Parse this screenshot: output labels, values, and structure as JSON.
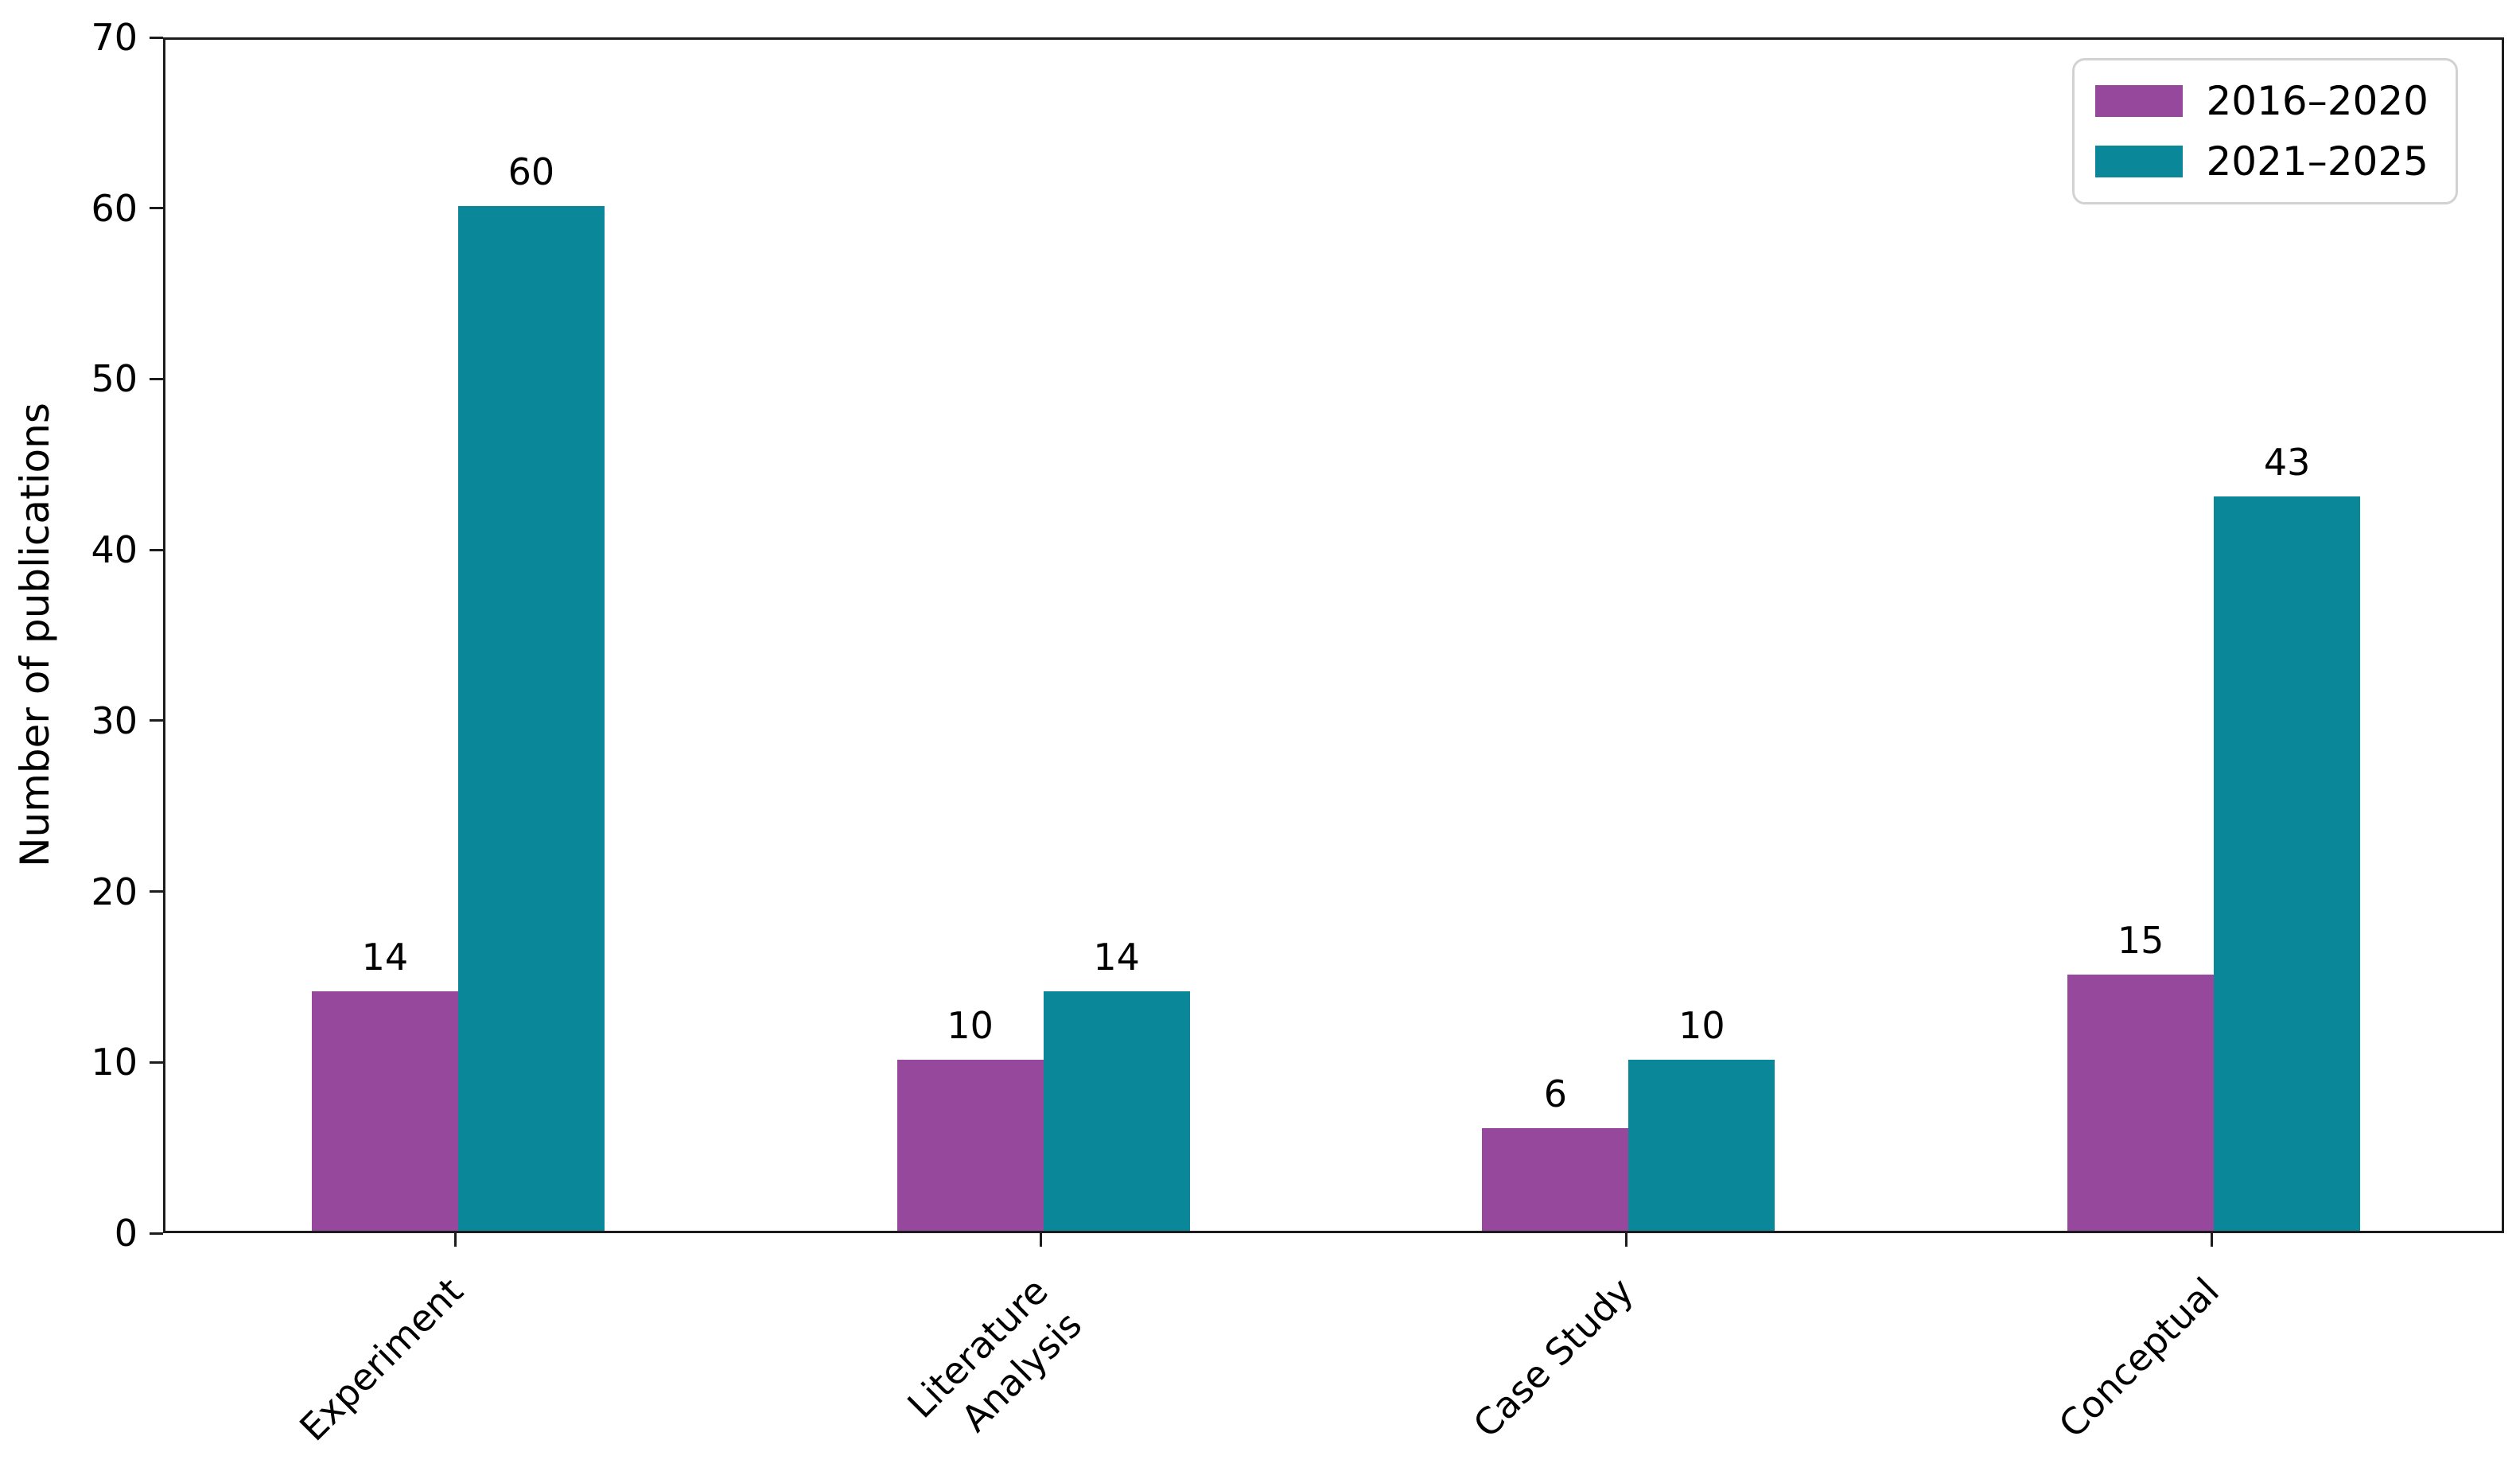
{
  "chart_data": {
    "type": "bar",
    "categories": [
      "Experiment",
      "Literature\nAnalysis",
      "Case Study",
      "Conceptual"
    ],
    "series": [
      {
        "name": "2016–2020",
        "color": "#95489c",
        "values": [
          14,
          10,
          6,
          15
        ]
      },
      {
        "name": "2021–2025",
        "color": "#0a8899",
        "values": [
          60,
          14,
          10,
          43
        ]
      }
    ],
    "title": "",
    "xlabel": "",
    "ylabel": "Number of publications",
    "ylim": [
      0,
      70
    ],
    "yticks": [
      0,
      10,
      20,
      30,
      40,
      50,
      60,
      70
    ],
    "bar_value_labels": [
      [
        14,
        10,
        6,
        15
      ],
      [
        60,
        14,
        10,
        43
      ]
    ],
    "legend_position": "upper right",
    "grid": false,
    "spine_color": "#1c1c1c",
    "legend_border_color": "#d2d2d2"
  }
}
